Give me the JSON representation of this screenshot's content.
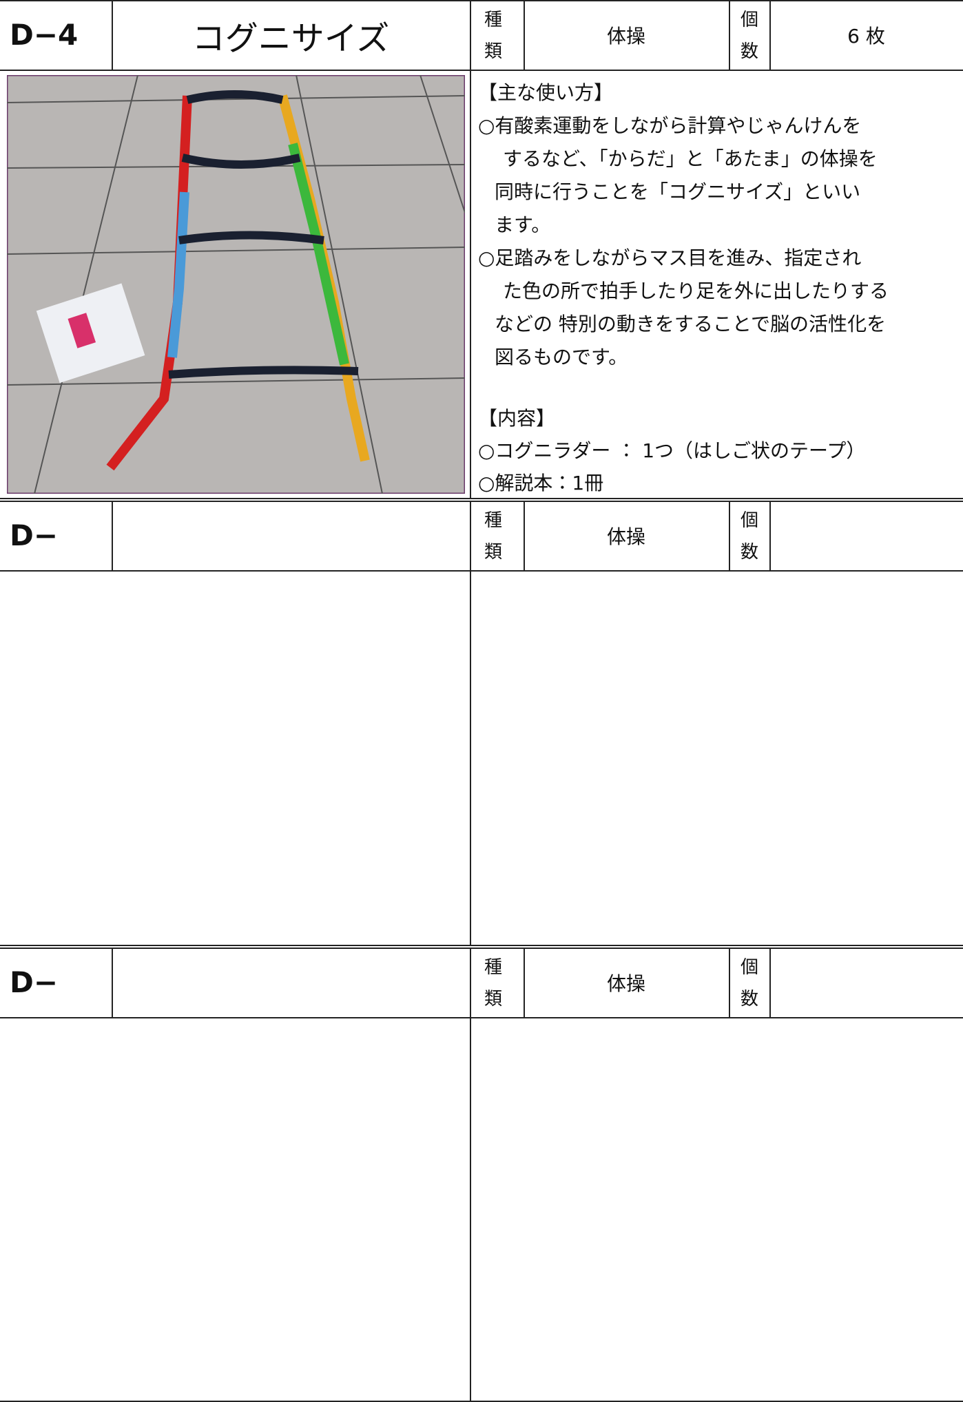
{
  "sections": [
    {
      "id": "D−4",
      "name": "コグニサイズ",
      "kind_label": [
        "種",
        "類"
      ],
      "kind": "体操",
      "count_label": [
        "個",
        "数"
      ],
      "count": "6 枚",
      "usage": [
        "【主な使い方】",
        "○有酸素運動をしながら計算やじゃんけんを",
        "するなど、「からだ」と「あたま」の体操を",
        "同時に行うことを「コグニサイズ」といい",
        "ます。",
        "○足踏みをしながらマス目を進み、指定され",
        "た色の所で拍手したり足を外に出したりする",
        "などの 特別の動きをすることで脳の活性化を",
        "図るものです。"
      ],
      "contents": [
        "【内容】",
        "○コグニラダー ： 1つ（はしご状のテープ）",
        "○解説本：1冊"
      ]
    },
    {
      "id": "D−",
      "kind_label": [
        "種",
        "類"
      ],
      "kind": "体操",
      "count_label": [
        "個",
        "数"
      ]
    },
    {
      "id": "D−",
      "kind_label": [
        "種",
        "類"
      ],
      "kind": "体操",
      "count_label": [
        "個",
        "数"
      ]
    }
  ]
}
